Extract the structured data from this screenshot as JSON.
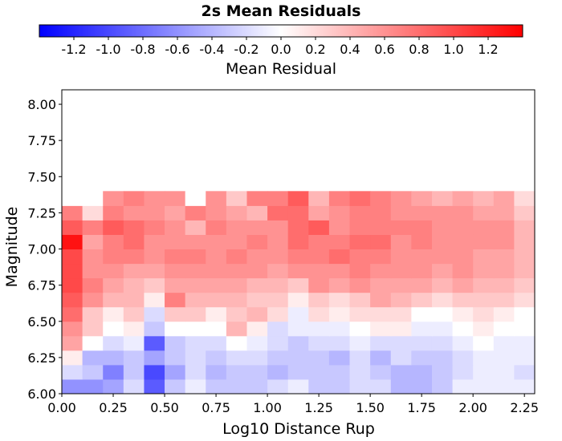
{
  "chart_data": {
    "type": "heatmap",
    "title": "2s Mean Residuals",
    "xlabel": "Log10 Distance Rup",
    "ylabel": "Magnitude",
    "colorbar_label": "Mean Residual",
    "colorbar_range": [
      -1.4,
      1.4
    ],
    "colorbar_ticks": [
      "-1.2",
      "-1.0",
      "-0.8",
      "-0.6",
      "-0.4",
      "-0.2",
      "0.0",
      "0.2",
      "0.4",
      "0.6",
      "0.8",
      "1.0",
      "1.2"
    ],
    "colors": {
      "negative": "#0000ff",
      "zero": "#ffffff",
      "positive": "#ff0000"
    },
    "xlim": [
      0.0,
      2.3
    ],
    "ylim": [
      6.0,
      8.1
    ],
    "x_ticks": [
      "0.00",
      "0.25",
      "0.50",
      "0.75",
      "1.00",
      "1.25",
      "1.50",
      "1.75",
      "2.00",
      "2.25"
    ],
    "y_ticks": [
      "6.00",
      "6.25",
      "6.50",
      "6.75",
      "7.00",
      "7.25",
      "7.50",
      "7.75",
      "8.00"
    ],
    "cell_width": 0.1,
    "cell_height": 0.1,
    "x_start": 0.0,
    "y_start": 6.0,
    "values": [
      [
        -0.6,
        -0.6,
        -0.5,
        -0.2,
        -0.9,
        -0.3,
        -0.1,
        -0.3,
        -0.3,
        -0.3,
        -0.2,
        -0.1,
        -0.3,
        -0.3,
        -0.2,
        -0.2,
        -0.4,
        -0.4,
        -0.3,
        -0.1,
        -0.1,
        -0.1,
        -0.1
      ],
      [
        -0.2,
        -0.3,
        -0.7,
        -0.3,
        -1.0,
        -0.5,
        -0.2,
        -0.4,
        -0.3,
        -0.3,
        -0.4,
        -0.3,
        -0.3,
        -0.3,
        -0.2,
        -0.3,
        -0.4,
        -0.4,
        -0.3,
        -0.2,
        -0.1,
        -0.1,
        -0.2
      ],
      [
        0.1,
        -0.4,
        -0.4,
        -0.3,
        -0.5,
        -0.3,
        -0.2,
        -0.3,
        -0.2,
        -0.2,
        -0.3,
        -0.3,
        -0.3,
        -0.4,
        -0.2,
        -0.4,
        -0.2,
        -0.3,
        -0.3,
        -0.2,
        -0.1,
        -0.1,
        -0.1
      ],
      [
        0.5,
        0.0,
        -0.2,
        -0.1,
        -0.9,
        -0.3,
        -0.2,
        -0.2,
        0.0,
        -0.1,
        -0.2,
        -0.3,
        -0.2,
        -0.2,
        -0.1,
        -0.2,
        -0.2,
        -0.2,
        -0.2,
        -0.1,
        0.0,
        -0.1,
        -0.1
      ],
      [
        0.6,
        0.3,
        0.0,
        0.1,
        -0.3,
        0.0,
        0.0,
        0.0,
        0.4,
        0.1,
        -0.2,
        -0.1,
        -0.1,
        -0.1,
        0.0,
        0.1,
        0.1,
        -0.1,
        -0.1,
        0.0,
        0.1,
        0.0,
        0.0
      ],
      [
        0.8,
        0.3,
        0.1,
        0.3,
        -0.2,
        0.3,
        0.3,
        0.1,
        0.3,
        0.4,
        0.2,
        -0.1,
        0.2,
        0.1,
        0.2,
        0.2,
        0.2,
        0.0,
        0.0,
        0.1,
        0.2,
        0.1,
        0.0
      ],
      [
        0.9,
        0.6,
        0.4,
        0.4,
        0.1,
        0.7,
        0.4,
        0.4,
        0.4,
        0.3,
        0.3,
        0.1,
        0.3,
        0.2,
        0.3,
        0.5,
        0.4,
        0.3,
        0.2,
        0.3,
        0.3,
        0.3,
        0.2
      ],
      [
        1.0,
        0.7,
        0.5,
        0.4,
        0.3,
        0.5,
        0.5,
        0.5,
        0.5,
        0.4,
        0.4,
        0.3,
        0.6,
        0.5,
        0.6,
        0.5,
        0.5,
        0.5,
        0.4,
        0.5,
        0.4,
        0.4,
        0.3
      ],
      [
        1.0,
        0.6,
        0.6,
        0.5,
        0.5,
        0.6,
        0.6,
        0.6,
        0.6,
        0.6,
        0.5,
        0.6,
        0.6,
        0.6,
        0.7,
        0.6,
        0.6,
        0.6,
        0.5,
        0.6,
        0.5,
        0.5,
        0.4
      ],
      [
        1.0,
        0.6,
        0.7,
        0.7,
        0.6,
        0.7,
        0.7,
        0.6,
        0.7,
        0.6,
        0.6,
        0.7,
        0.7,
        0.8,
        0.7,
        0.7,
        0.6,
        0.6,
        0.6,
        0.6,
        0.5,
        0.5,
        0.4
      ],
      [
        1.3,
        0.5,
        0.7,
        0.8,
        0.6,
        0.6,
        0.6,
        0.6,
        0.6,
        0.7,
        0.6,
        0.8,
        0.7,
        0.7,
        0.8,
        0.8,
        0.6,
        0.7,
        0.6,
        0.6,
        0.6,
        0.6,
        0.4
      ],
      [
        0.9,
        0.7,
        0.9,
        0.8,
        0.7,
        0.6,
        0.4,
        0.7,
        0.6,
        0.6,
        0.6,
        0.8,
        0.9,
        0.6,
        0.7,
        0.7,
        0.7,
        0.7,
        0.6,
        0.6,
        0.6,
        0.6,
        0.4
      ],
      [
        0.7,
        0.2,
        0.7,
        0.6,
        0.6,
        0.5,
        0.7,
        0.6,
        0.5,
        0.4,
        0.8,
        0.8,
        0.5,
        0.6,
        0.7,
        0.7,
        0.6,
        0.6,
        0.6,
        0.6,
        0.5,
        0.5,
        0.3
      ],
      [
        0.0,
        0.0,
        0.6,
        0.7,
        0.6,
        0.6,
        0.0,
        0.6,
        0.3,
        0.7,
        0.7,
        0.9,
        0.4,
        0.7,
        0.8,
        0.7,
        0.6,
        0.5,
        0.4,
        0.5,
        0.4,
        0.5,
        0.2
      ]
    ]
  }
}
